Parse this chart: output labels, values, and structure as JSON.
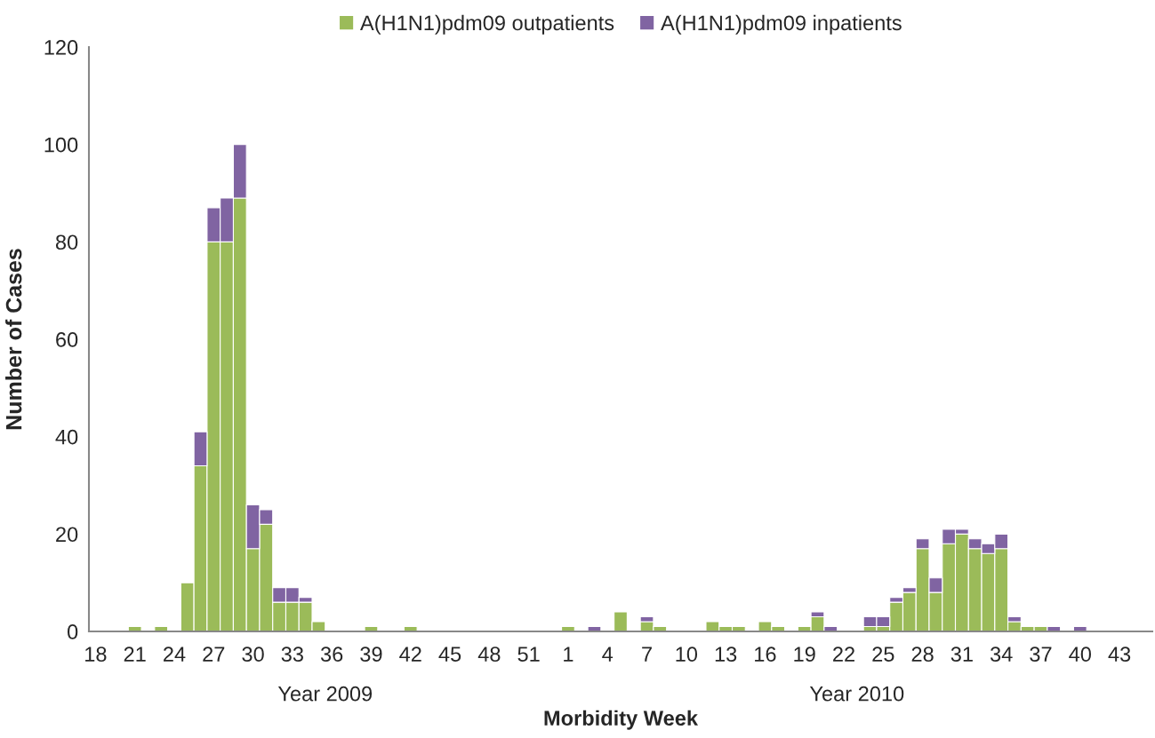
{
  "chart_data": {
    "type": "bar",
    "stacked": true,
    "xlabel": "Morbidity Week",
    "ylabel": "Number of Cases",
    "categories": [
      "18",
      null,
      null,
      "21",
      null,
      null,
      "24",
      null,
      null,
      "27",
      null,
      null,
      "30",
      null,
      null,
      "33",
      null,
      null,
      "36",
      null,
      null,
      "39",
      null,
      null,
      "42",
      null,
      null,
      "45",
      null,
      null,
      "48",
      null,
      null,
      "51",
      null,
      null,
      "1",
      null,
      null,
      "4",
      null,
      null,
      "7",
      null,
      null,
      "10",
      null,
      null,
      "13",
      null,
      null,
      "16",
      null,
      null,
      "19",
      null,
      null,
      "22",
      null,
      null,
      "25",
      null,
      null,
      "28",
      null,
      null,
      "31",
      null,
      null,
      "34",
      null,
      null,
      "37",
      null,
      null,
      "40",
      null,
      null,
      "43",
      null,
      null
    ],
    "series": [
      {
        "name": "A(H1N1)pdm09 outpatients",
        "color": "#9bbb59",
        "values": [
          null,
          null,
          null,
          1,
          null,
          1,
          null,
          10,
          34,
          80,
          80,
          89,
          17,
          22,
          6,
          6,
          6,
          2,
          null,
          null,
          null,
          1,
          null,
          null,
          1,
          null,
          null,
          null,
          null,
          null,
          null,
          null,
          null,
          null,
          null,
          null,
          1,
          null,
          null,
          null,
          4,
          null,
          2,
          1,
          null,
          null,
          null,
          2,
          1,
          1,
          null,
          2,
          1,
          null,
          1,
          3,
          null,
          null,
          null,
          1,
          1,
          6,
          8,
          17,
          8,
          18,
          20,
          17,
          16,
          17,
          2,
          1,
          1,
          null,
          null,
          null,
          null,
          null,
          null,
          null,
          null
        ]
      },
      {
        "name": "A(H1N1)pdm09 inpatients",
        "color": "#8064a2",
        "values": [
          null,
          null,
          null,
          null,
          null,
          null,
          null,
          null,
          7,
          7,
          9,
          11,
          9,
          3,
          3,
          3,
          1,
          null,
          null,
          null,
          null,
          null,
          null,
          null,
          null,
          null,
          null,
          null,
          null,
          null,
          null,
          null,
          null,
          null,
          null,
          null,
          null,
          null,
          1,
          null,
          null,
          null,
          1,
          null,
          null,
          null,
          null,
          null,
          null,
          null,
          null,
          null,
          null,
          null,
          null,
          1,
          1,
          null,
          null,
          2,
          2,
          1,
          1,
          2,
          3,
          3,
          1,
          2,
          2,
          3,
          1,
          null,
          null,
          1,
          null,
          1,
          null,
          null,
          null,
          null,
          null
        ]
      }
    ],
    "ylim": [
      0,
      120
    ],
    "yticks": [
      0,
      20,
      40,
      60,
      80,
      100,
      120
    ],
    "grid": false,
    "legend": "top",
    "annotations": [
      "Year 2009",
      "Year 2010"
    ]
  }
}
